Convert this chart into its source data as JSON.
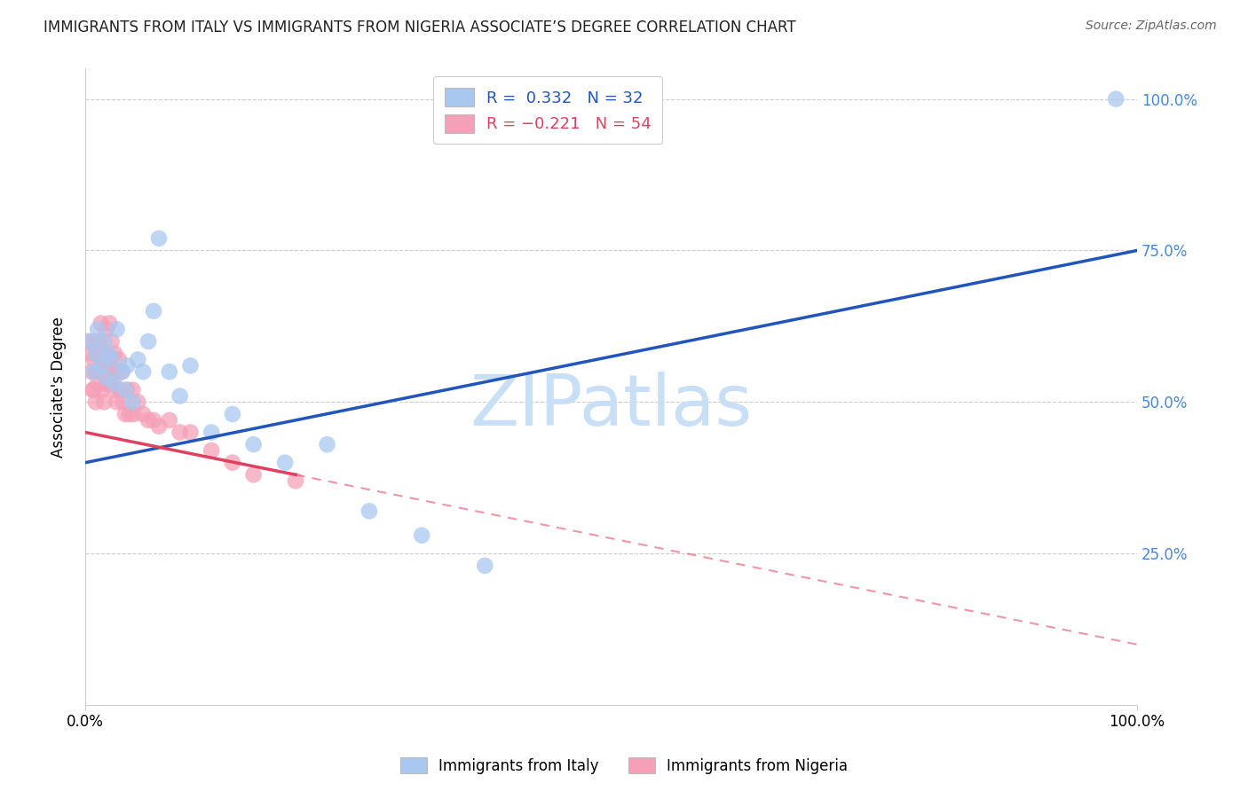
{
  "title": "IMMIGRANTS FROM ITALY VS IMMIGRANTS FROM NIGERIA ASSOCIATE’S DEGREE CORRELATION CHART",
  "source": "Source: ZipAtlas.com",
  "ylabel": "Associate's Degree",
  "legend_italy": "R =  0.332   N = 32",
  "legend_nigeria": "R = −0.221   N = 54",
  "legend_label_italy": "Immigrants from Italy",
  "legend_label_nigeria": "Immigrants from Nigeria",
  "italy_color": "#a8c8f0",
  "nigeria_color": "#f5a0b8",
  "italy_line_color": "#2255bb",
  "nigeria_line_color": "#e04060",
  "italy_scatter": {
    "x": [
      0.005,
      0.008,
      0.01,
      0.012,
      0.015,
      0.018,
      0.02,
      0.022,
      0.025,
      0.028,
      0.03,
      0.035,
      0.038,
      0.04,
      0.045,
      0.05,
      0.055,
      0.06,
      0.065,
      0.07,
      0.08,
      0.09,
      0.1,
      0.12,
      0.14,
      0.16,
      0.19,
      0.23,
      0.27,
      0.32,
      0.38,
      0.98
    ],
    "y": [
      0.6,
      0.55,
      0.58,
      0.62,
      0.56,
      0.6,
      0.54,
      0.58,
      0.57,
      0.53,
      0.62,
      0.55,
      0.52,
      0.56,
      0.5,
      0.57,
      0.55,
      0.6,
      0.65,
      0.77,
      0.55,
      0.51,
      0.56,
      0.45,
      0.48,
      0.43,
      0.4,
      0.43,
      0.32,
      0.28,
      0.23,
      1.0
    ]
  },
  "nigeria_scatter": {
    "x": [
      0.003,
      0.005,
      0.006,
      0.007,
      0.008,
      0.008,
      0.01,
      0.01,
      0.01,
      0.012,
      0.012,
      0.013,
      0.014,
      0.015,
      0.015,
      0.016,
      0.017,
      0.018,
      0.018,
      0.02,
      0.02,
      0.02,
      0.022,
      0.022,
      0.023,
      0.024,
      0.025,
      0.025,
      0.026,
      0.028,
      0.028,
      0.03,
      0.03,
      0.032,
      0.033,
      0.035,
      0.036,
      0.038,
      0.04,
      0.042,
      0.045,
      0.046,
      0.05,
      0.055,
      0.06,
      0.065,
      0.07,
      0.08,
      0.09,
      0.1,
      0.12,
      0.14,
      0.16,
      0.2
    ],
    "y": [
      0.6,
      0.58,
      0.55,
      0.52,
      0.57,
      0.52,
      0.6,
      0.55,
      0.5,
      0.58,
      0.53,
      0.6,
      0.55,
      0.63,
      0.57,
      0.52,
      0.58,
      0.55,
      0.5,
      0.62,
      0.57,
      0.53,
      0.58,
      0.53,
      0.63,
      0.57,
      0.55,
      0.6,
      0.53,
      0.58,
      0.52,
      0.55,
      0.5,
      0.57,
      0.52,
      0.55,
      0.5,
      0.48,
      0.52,
      0.48,
      0.52,
      0.48,
      0.5,
      0.48,
      0.47,
      0.47,
      0.46,
      0.47,
      0.45,
      0.45,
      0.42,
      0.4,
      0.38,
      0.37
    ]
  },
  "italy_line": {
    "x0": 0.0,
    "y0": 0.4,
    "x1": 1.0,
    "y1": 0.75
  },
  "nigeria_line_solid": {
    "x0": 0.0,
    "y0": 0.45,
    "x1": 0.2,
    "y1": 0.38
  },
  "nigeria_line_dashed": {
    "x0": 0.2,
    "y0": 0.38,
    "x1": 1.0,
    "y1": 0.1
  },
  "xmin": 0.0,
  "xmax": 1.0,
  "ymin": 0.0,
  "ymax": 1.05,
  "ytick_positions": [
    0.25,
    0.5,
    0.75,
    1.0
  ],
  "ytick_labels": [
    "25.0%",
    "50.0%",
    "75.0%",
    "100.0%"
  ],
  "xtick_positions": [
    0.0,
    1.0
  ],
  "xtick_labels": [
    "0.0%",
    "100.0%"
  ],
  "grid_color": "#cccccc",
  "watermark_color": "#c8dff5",
  "right_tick_color": "#4488dd",
  "title_fontsize": 12,
  "axis_fontsize": 12,
  "legend_fontsize": 13
}
